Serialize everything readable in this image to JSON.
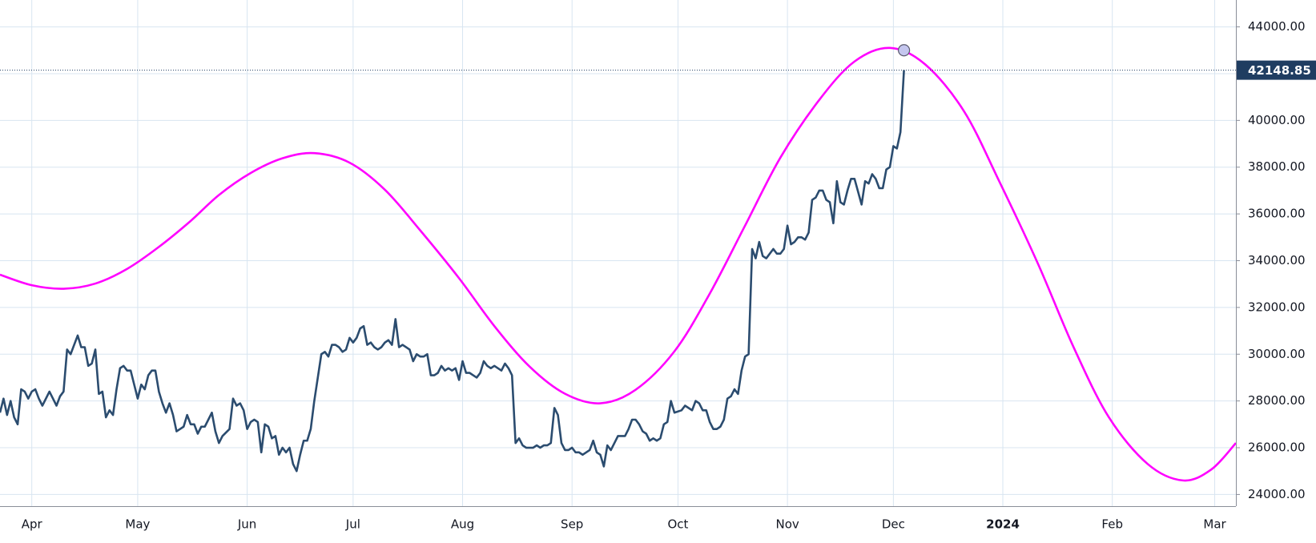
{
  "chart_data": {
    "type": "line",
    "xlim": [
      -9,
      341
    ],
    "ylim": [
      23500,
      45150
    ],
    "xticks": [
      {
        "value": 0,
        "label": "Apr"
      },
      {
        "value": 30,
        "label": "May"
      },
      {
        "value": 61,
        "label": "Jun"
      },
      {
        "value": 91,
        "label": "Jul"
      },
      {
        "value": 122,
        "label": "Aug"
      },
      {
        "value": 153,
        "label": "Sep"
      },
      {
        "value": 183,
        "label": "Oct"
      },
      {
        "value": 214,
        "label": "Nov"
      },
      {
        "value": 244,
        "label": "Dec"
      },
      {
        "value": 275,
        "label": "2024",
        "bold": true
      },
      {
        "value": 306,
        "label": "Feb"
      },
      {
        "value": 335,
        "label": "Mar"
      }
    ],
    "yticks": [
      {
        "value": 24000,
        "label": "24000.00"
      },
      {
        "value": 26000,
        "label": "26000.00"
      },
      {
        "value": 28000,
        "label": "28000.00"
      },
      {
        "value": 30000,
        "label": "30000.00"
      },
      {
        "value": 32000,
        "label": "32000.00"
      },
      {
        "value": 34000,
        "label": "34000.00"
      },
      {
        "value": 36000,
        "label": "36000.00"
      },
      {
        "value": 38000,
        "label": "38000.00"
      },
      {
        "value": 40000,
        "label": "40000.00"
      },
      {
        "value": 42000,
        "label": "42000.00"
      },
      {
        "value": 44000,
        "label": "44000.00"
      }
    ],
    "grid": true,
    "last_price": 42148.85,
    "last_price_color": "#1f3d61",
    "series": [
      {
        "color": "#2b4c6f",
        "smooth": false,
        "x": [
          -9,
          -8,
          -7,
          -6,
          -5,
          -4,
          -3,
          -2,
          -1,
          0,
          1,
          2,
          3,
          5,
          6,
          7,
          8,
          9,
          10,
          11,
          12,
          13,
          14,
          15,
          16,
          17,
          18,
          19,
          20,
          21,
          22,
          23,
          24,
          25,
          26,
          27,
          28,
          30,
          31,
          32,
          33,
          34,
          35,
          36,
          37,
          38,
          39,
          40,
          41,
          42,
          43,
          44,
          45,
          46,
          47,
          48,
          49,
          50,
          51,
          52,
          53,
          54,
          56,
          57,
          58,
          59,
          60,
          61,
          62,
          63,
          64,
          65,
          66,
          67,
          68,
          69,
          70,
          71,
          72,
          73,
          74,
          75,
          76,
          77,
          78,
          79,
          80,
          82,
          83,
          84,
          85,
          86,
          87,
          88,
          89,
          90,
          91,
          92,
          93,
          94,
          95,
          96,
          97,
          98,
          99,
          100,
          101,
          102,
          103,
          104,
          105,
          107,
          108,
          109,
          110,
          111,
          112,
          113,
          114,
          115,
          116,
          117,
          118,
          119,
          120,
          121,
          122,
          123,
          124,
          125,
          126,
          127,
          128,
          129,
          130,
          131,
          133,
          134,
          135,
          136,
          137,
          138,
          139,
          140,
          141,
          142,
          143,
          144,
          145,
          146,
          147,
          148,
          149,
          150,
          151,
          152,
          153,
          154,
          155,
          156,
          158,
          159,
          160,
          161,
          162,
          163,
          164,
          165,
          166,
          167,
          168,
          169,
          170,
          171,
          172,
          173,
          174,
          175,
          176,
          177,
          178,
          179,
          180,
          181,
          182,
          184,
          185,
          186,
          187,
          188,
          189,
          190,
          191,
          192,
          193,
          194,
          195,
          196,
          197,
          198,
          199,
          200,
          201,
          202,
          203,
          204,
          205,
          206,
          207,
          208,
          210,
          211,
          212,
          213,
          214,
          215,
          216,
          217,
          218,
          219,
          220,
          221,
          222,
          223,
          224,
          225,
          226,
          227,
          228,
          229,
          230,
          231,
          232,
          233,
          235,
          236,
          237,
          238,
          239,
          240,
          241,
          242,
          243,
          244,
          245,
          246,
          247
        ],
        "values": [
          27500,
          28100,
          27400,
          28000,
          27300,
          27000,
          28500,
          28400,
          28100,
          28400,
          28500,
          28100,
          27800,
          28400,
          28100,
          27800,
          28200,
          28400,
          30200,
          30000,
          30400,
          30800,
          30300,
          30300,
          29500,
          29600,
          30200,
          28300,
          28400,
          27300,
          27600,
          27400,
          28500,
          29400,
          29500,
          29300,
          29300,
          28100,
          28700,
          28500,
          29100,
          29300,
          29300,
          28400,
          27900,
          27500,
          27900,
          27400,
          26700,
          26800,
          26900,
          27400,
          27000,
          27000,
          26600,
          26900,
          26900,
          27200,
          27500,
          26700,
          26200,
          26500,
          26800,
          28100,
          27800,
          27900,
          27600,
          26800,
          27100,
          27200,
          27100,
          25800,
          27000,
          26900,
          26400,
          26500,
          25700,
          26000,
          25800,
          26000,
          25300,
          25000,
          25700,
          26300,
          26300,
          26800,
          28000,
          30000,
          30100,
          29900,
          30400,
          30400,
          30300,
          30100,
          30200,
          30700,
          30500,
          30700,
          31100,
          31200,
          30400,
          30500,
          30300,
          30200,
          30300,
          30500,
          30600,
          30400,
          31500,
          30300,
          30400,
          30200,
          29700,
          30000,
          29900,
          29900,
          30000,
          29100,
          29100,
          29200,
          29500,
          29300,
          29400,
          29300,
          29400,
          28900,
          29700,
          29200,
          29200,
          29100,
          29000,
          29200,
          29700,
          29500,
          29400,
          29500,
          29300,
          29600,
          29400,
          29100,
          26200,
          26400,
          26100,
          26000,
          26000,
          26000,
          26100,
          26000,
          26100,
          26100,
          26200,
          27700,
          27400,
          26200,
          25900,
          25900,
          26000,
          25800,
          25800,
          25700,
          25900,
          26300,
          25800,
          25700,
          25200,
          26100,
          25900,
          26200,
          26500,
          26500,
          26500,
          26800,
          27200,
          27200,
          27000,
          26700,
          26600,
          26300,
          26400,
          26300,
          26400,
          27000,
          27100,
          28000,
          27500,
          27600,
          27800,
          27700,
          27600,
          28000,
          27900,
          27600,
          27600,
          27100,
          26800,
          26800,
          26900,
          27200,
          28100,
          28200,
          28500,
          28300,
          29300,
          29900,
          30000,
          34500,
          34100,
          34800,
          34200,
          34100,
          34500,
          34300,
          34300,
          34500,
          35500,
          34700,
          34800,
          35000,
          35000,
          34900,
          35200,
          36600,
          36700,
          37000,
          37000,
          36600,
          36500,
          35600,
          37400,
          36500,
          36400,
          37000,
          37500,
          37500,
          36400,
          37400,
          37300,
          37700,
          37500,
          37100,
          37100,
          37900,
          38000,
          38900,
          38800,
          39500,
          42148.85
        ]
      },
      {
        "color": "#ff00ff",
        "smooth": true,
        "x": [
          -9,
          0,
          9,
          18,
          27,
          36,
          45,
          53,
          62,
          71,
          80,
          90,
          100,
          110,
          121,
          131,
          141,
          151,
          161,
          171,
          182,
          192,
          202,
          212,
          223,
          233,
          243,
          253,
          264,
          274,
          285,
          295,
          305,
          316,
          326,
          334,
          341
        ],
        "values": [
          33400,
          32950,
          32800,
          33021,
          33649,
          34590,
          35700,
          36810,
          37751,
          38379,
          38600,
          38192,
          37034,
          35297,
          33250,
          31203,
          29466,
          28308,
          27900,
          28479,
          30125,
          32592,
          35500,
          38408,
          40875,
          42521,
          43100,
          42395,
          40392,
          37389,
          33850,
          30311,
          27308,
          25305,
          24600,
          25063,
          26200
        ],
        "marker": {
          "x": 247,
          "value": 43000,
          "color": "#c4c6ee"
        }
      }
    ]
  }
}
